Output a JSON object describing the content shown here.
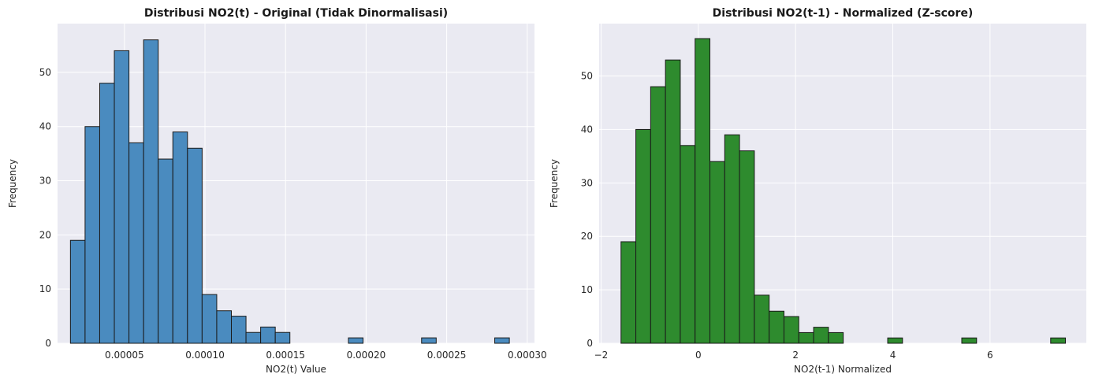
{
  "chart_data": [
    {
      "type": "bar",
      "title": "Distribusi NO2(t) - Original (Tidak Dinormalisasi)",
      "xlabel": "NO2(t) Value",
      "ylabel": "Frequency",
      "color": "#4a8bbf",
      "edge_color": "#1a1a1a",
      "background": "#eaeaf2",
      "grid": true,
      "xlim": [
        8.5e-06,
        0.0003045
      ],
      "ylim": [
        0,
        59
      ],
      "xticks": [
        5e-05,
        0.0001,
        0.00015,
        0.0002,
        0.00025,
        0.0003
      ],
      "xtick_labels": [
        "0.00005",
        "0.00010",
        "0.00015",
        "0.00020",
        "0.00025",
        "0.00030"
      ],
      "yticks": [
        0,
        10,
        20,
        30,
        40,
        50
      ],
      "bin_start": 1.65e-05,
      "bin_width": 9.08e-06,
      "values": [
        19,
        40,
        48,
        54,
        37,
        56,
        34,
        39,
        36,
        9,
        6,
        5,
        2,
        3,
        2,
        0,
        0,
        0,
        0,
        1,
        0,
        0,
        0,
        0,
        1,
        0,
        0,
        0,
        0,
        1
      ]
    },
    {
      "type": "bar",
      "title": "Distribusi NO2(t-1) - Normalized (Z-score)",
      "xlabel": "NO2(t-1) Normalized",
      "ylabel": "Frequency",
      "color": "#2e8b2e",
      "edge_color": "#1a1a1a",
      "background": "#eaeaf2",
      "grid": true,
      "xlim": [
        -2.04,
        7.98
      ],
      "ylim": [
        0,
        59.8
      ],
      "xticks": [
        -2,
        0,
        2,
        4,
        6
      ],
      "xtick_labels": [
        "−2",
        "0",
        "2",
        "4",
        "6"
      ],
      "yticks": [
        0,
        10,
        20,
        30,
        40,
        50
      ],
      "bin_start": -1.59,
      "bin_width": 0.3047,
      "values": [
        19,
        40,
        48,
        53,
        37,
        57,
        34,
        39,
        36,
        9,
        6,
        5,
        2,
        3,
        2,
        0,
        0,
        0,
        1,
        0,
        0,
        0,
        0,
        1,
        0,
        0,
        0,
        0,
        0,
        1
      ]
    }
  ]
}
